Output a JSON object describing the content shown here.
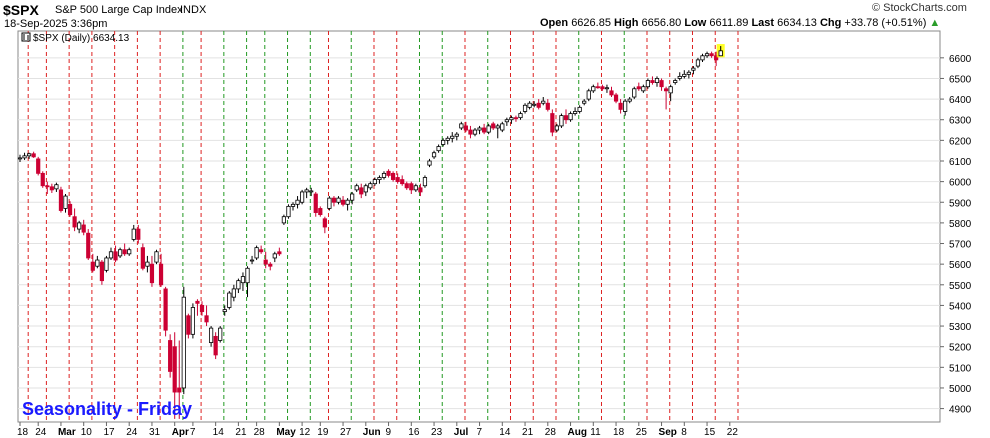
{
  "header": {
    "symbol": "$SPX",
    "name": "S&P 500 Large Cap Index",
    "exchange": "INDX",
    "datetime": "18-Sep-2025 3:36pm",
    "watermark": "© StockCharts.com",
    "ohlc": {
      "open_label": "Open",
      "open": "6626.85",
      "high_label": "High",
      "high": "6656.80",
      "low_label": "Low",
      "low": "6611.89",
      "last_label": "Last",
      "last": "6634.13",
      "chg_label": "Chg",
      "chg": "+33.78 (+0.51%)",
      "chg_icon": "up-triangle-icon"
    }
  },
  "legend": {
    "series_label": "$SPX (Daily) 6634.13",
    "icon": "bar-chart-icon"
  },
  "annotation": {
    "text": "Seasonality - Friday",
    "color": "#1a1aff"
  },
  "colors": {
    "up_candle": "#ffffff",
    "down_candle": "#cc0033",
    "doji": "#000000",
    "red_marker": "#dd2222",
    "green_marker": "#229922",
    "current_highlight": "#ffff00"
  },
  "chart_data": {
    "type": "candlestick",
    "title": "$SPX (Daily)",
    "ylim": [
      4835,
      6730
    ],
    "y_ticks": [
      4900,
      5000,
      5100,
      5200,
      5300,
      5400,
      5500,
      5600,
      5700,
      5800,
      5900,
      6000,
      6100,
      6200,
      6300,
      6400,
      6500,
      6600
    ],
    "x_tick_labels": [
      "18",
      "24",
      "Mar",
      "10",
      "17",
      "24",
      "31",
      "Apr",
      "7",
      "14",
      "21",
      "28",
      "May",
      "12",
      "19",
      "27",
      "Jun",
      "9",
      "16",
      "23",
      "Jul",
      "7",
      "14",
      "21",
      "28",
      "Aug",
      "11",
      "18",
      "25",
      "Sep",
      "8",
      "15",
      "22"
    ],
    "bold_x_labels": [
      "Mar",
      "Apr",
      "May",
      "Jun",
      "Jul",
      "Aug",
      "Sep"
    ],
    "gridlines": true,
    "green_marker_weeks": [
      7,
      9,
      10,
      11,
      12,
      13,
      15,
      18,
      19,
      21,
      25,
      27
    ],
    "candles": [
      {
        "o": 6110,
        "h": 6130,
        "l": 6095,
        "c": 6115
      },
      {
        "o": 6115,
        "h": 6140,
        "l": 6105,
        "c": 6125
      },
      {
        "o": 6125,
        "h": 6140,
        "l": 6110,
        "c": 6135
      },
      {
        "o": 6135,
        "h": 6145,
        "l": 6115,
        "c": 6120
      },
      {
        "o": 6110,
        "h": 6120,
        "l": 6030,
        "c": 6040
      },
      {
        "o": 6040,
        "h": 6050,
        "l": 5970,
        "c": 5980
      },
      {
        "o": 5980,
        "h": 6000,
        "l": 5940,
        "c": 5975
      },
      {
        "o": 5975,
        "h": 5990,
        "l": 5945,
        "c": 5960
      },
      {
        "o": 5965,
        "h": 5995,
        "l": 5950,
        "c": 5985
      },
      {
        "o": 5960,
        "h": 5975,
        "l": 5850,
        "c": 5860
      },
      {
        "o": 5870,
        "h": 5940,
        "l": 5850,
        "c": 5930
      },
      {
        "o": 5890,
        "h": 5905,
        "l": 5830,
        "c": 5840
      },
      {
        "o": 5830,
        "h": 5870,
        "l": 5760,
        "c": 5780
      },
      {
        "o": 5770,
        "h": 5810,
        "l": 5750,
        "c": 5800
      },
      {
        "o": 5790,
        "h": 5815,
        "l": 5740,
        "c": 5755
      },
      {
        "o": 5750,
        "h": 5770,
        "l": 5620,
        "c": 5630
      },
      {
        "o": 5610,
        "h": 5650,
        "l": 5560,
        "c": 5570
      },
      {
        "o": 5590,
        "h": 5640,
        "l": 5580,
        "c": 5620
      },
      {
        "o": 5610,
        "h": 5620,
        "l": 5500,
        "c": 5520
      },
      {
        "o": 5570,
        "h": 5640,
        "l": 5560,
        "c": 5630
      },
      {
        "o": 5630,
        "h": 5680,
        "l": 5620,
        "c": 5660
      },
      {
        "o": 5660,
        "h": 5690,
        "l": 5610,
        "c": 5620
      },
      {
        "o": 5640,
        "h": 5680,
        "l": 5630,
        "c": 5670
      },
      {
        "o": 5670,
        "h": 5700,
        "l": 5640,
        "c": 5650
      },
      {
        "o": 5650,
        "h": 5680,
        "l": 5640,
        "c": 5670
      },
      {
        "o": 5720,
        "h": 5790,
        "l": 5710,
        "c": 5770
      },
      {
        "o": 5770,
        "h": 5790,
        "l": 5700,
        "c": 5720
      },
      {
        "o": 5680,
        "h": 5700,
        "l": 5570,
        "c": 5580
      },
      {
        "o": 5590,
        "h": 5640,
        "l": 5560,
        "c": 5610
      },
      {
        "o": 5600,
        "h": 5640,
        "l": 5490,
        "c": 5510
      },
      {
        "o": 5610,
        "h": 5670,
        "l": 5600,
        "c": 5660
      },
      {
        "o": 5600,
        "h": 5650,
        "l": 5490,
        "c": 5500
      },
      {
        "o": 5480,
        "h": 5490,
        "l": 5250,
        "c": 5280
      },
      {
        "o": 5230,
        "h": 5260,
        "l": 5050,
        "c": 5080
      },
      {
        "o": 5200,
        "h": 5270,
        "l": 4850,
        "c": 4980
      },
      {
        "o": 5000,
        "h": 5230,
        "l": 4850,
        "c": 4980
      },
      {
        "o": 5000,
        "h": 5490,
        "l": 4970,
        "c": 5440
      },
      {
        "o": 5350,
        "h": 5360,
        "l": 5240,
        "c": 5260
      },
      {
        "o": 5260,
        "h": 5410,
        "l": 5240,
        "c": 5390
      },
      {
        "o": 5420,
        "h": 5430,
        "l": 5350,
        "c": 5410
      },
      {
        "o": 5400,
        "h": 5420,
        "l": 5350,
        "c": 5370
      },
      {
        "o": 5350,
        "h": 5400,
        "l": 5300,
        "c": 5320
      },
      {
        "o": 5220,
        "h": 5300,
        "l": 5200,
        "c": 5290
      },
      {
        "o": 5250,
        "h": 5270,
        "l": 5140,
        "c": 5160
      },
      {
        "o": 5230,
        "h": 5300,
        "l": 5220,
        "c": 5290
      },
      {
        "o": 5370,
        "h": 5400,
        "l": 5350,
        "c": 5380
      },
      {
        "o": 5390,
        "h": 5470,
        "l": 5380,
        "c": 5460
      },
      {
        "o": 5440,
        "h": 5500,
        "l": 5420,
        "c": 5480
      },
      {
        "o": 5480,
        "h": 5530,
        "l": 5460,
        "c": 5520
      },
      {
        "o": 5510,
        "h": 5560,
        "l": 5470,
        "c": 5540
      },
      {
        "o": 5510,
        "h": 5590,
        "l": 5440,
        "c": 5580
      },
      {
        "o": 5620,
        "h": 5640,
        "l": 5600,
        "c": 5620
      },
      {
        "o": 5630,
        "h": 5690,
        "l": 5620,
        "c": 5680
      },
      {
        "o": 5670,
        "h": 5690,
        "l": 5650,
        "c": 5660
      },
      {
        "o": 5620,
        "h": 5660,
        "l": 5580,
        "c": 5600
      },
      {
        "o": 5600,
        "h": 5610,
        "l": 5570,
        "c": 5590
      },
      {
        "o": 5630,
        "h": 5660,
        "l": 5610,
        "c": 5650
      },
      {
        "o": 5660,
        "h": 5680,
        "l": 5640,
        "c": 5650
      },
      {
        "o": 5800,
        "h": 5840,
        "l": 5790,
        "c": 5830
      },
      {
        "o": 5830,
        "h": 5890,
        "l": 5820,
        "c": 5880
      },
      {
        "o": 5880,
        "h": 5900,
        "l": 5860,
        "c": 5890
      },
      {
        "o": 5890,
        "h": 5930,
        "l": 5870,
        "c": 5910
      },
      {
        "o": 5900,
        "h": 5960,
        "l": 5890,
        "c": 5950
      },
      {
        "o": 5950,
        "h": 5970,
        "l": 5920,
        "c": 5960
      },
      {
        "o": 5950,
        "h": 5970,
        "l": 5930,
        "c": 5955
      },
      {
        "o": 5940,
        "h": 5950,
        "l": 5830,
        "c": 5850
      },
      {
        "o": 5870,
        "h": 5880,
        "l": 5830,
        "c": 5840
      },
      {
        "o": 5820,
        "h": 5830,
        "l": 5750,
        "c": 5780
      },
      {
        "o": 5870,
        "h": 5930,
        "l": 5860,
        "c": 5920
      },
      {
        "o": 5920,
        "h": 5930,
        "l": 5880,
        "c": 5900
      },
      {
        "o": 5900,
        "h": 5930,
        "l": 5890,
        "c": 5920
      },
      {
        "o": 5910,
        "h": 5930,
        "l": 5880,
        "c": 5890
      },
      {
        "o": 5890,
        "h": 5920,
        "l": 5860,
        "c": 5910
      },
      {
        "o": 5910,
        "h": 5950,
        "l": 5890,
        "c": 5940
      },
      {
        "o": 5960,
        "h": 5990,
        "l": 5950,
        "c": 5980
      },
      {
        "o": 5970,
        "h": 5990,
        "l": 5920,
        "c": 5940
      },
      {
        "o": 5950,
        "h": 5990,
        "l": 5930,
        "c": 5980
      },
      {
        "o": 5970,
        "h": 6000,
        "l": 5960,
        "c": 5990
      },
      {
        "o": 5990,
        "h": 6020,
        "l": 5980,
        "c": 6010
      },
      {
        "o": 6010,
        "h": 6030,
        "l": 5990,
        "c": 6020
      },
      {
        "o": 6020,
        "h": 6050,
        "l": 6010,
        "c": 6040
      },
      {
        "o": 6050,
        "h": 6060,
        "l": 6020,
        "c": 6030
      },
      {
        "o": 6040,
        "h": 6050,
        "l": 6000,
        "c": 6010
      },
      {
        "o": 6020,
        "h": 6040,
        "l": 5990,
        "c": 6000
      },
      {
        "o": 6010,
        "h": 6030,
        "l": 5980,
        "c": 5990
      },
      {
        "o": 5990,
        "h": 6000,
        "l": 5960,
        "c": 5970
      },
      {
        "o": 5990,
        "h": 6000,
        "l": 5940,
        "c": 5960
      },
      {
        "o": 5960,
        "h": 5990,
        "l": 5950,
        "c": 5980
      },
      {
        "o": 5970,
        "h": 5990,
        "l": 5930,
        "c": 5950
      },
      {
        "o": 5980,
        "h": 6030,
        "l": 5970,
        "c": 6020
      },
      {
        "o": 6080,
        "h": 6110,
        "l": 6070,
        "c": 6100
      },
      {
        "o": 6120,
        "h": 6150,
        "l": 6110,
        "c": 6140
      },
      {
        "o": 6150,
        "h": 6180,
        "l": 6140,
        "c": 6170
      },
      {
        "o": 6180,
        "h": 6210,
        "l": 6170,
        "c": 6200
      },
      {
        "o": 6200,
        "h": 6220,
        "l": 6180,
        "c": 6210
      },
      {
        "o": 6210,
        "h": 6240,
        "l": 6190,
        "c": 6220
      },
      {
        "o": 6220,
        "h": 6240,
        "l": 6200,
        "c": 6230
      },
      {
        "o": 6260,
        "h": 6290,
        "l": 6250,
        "c": 6280
      },
      {
        "o": 6270,
        "h": 6290,
        "l": 6240,
        "c": 6250
      },
      {
        "o": 6250,
        "h": 6270,
        "l": 6210,
        "c": 6230
      },
      {
        "o": 6230,
        "h": 6260,
        "l": 6220,
        "c": 6250
      },
      {
        "o": 6250,
        "h": 6270,
        "l": 6230,
        "c": 6260
      },
      {
        "o": 6260,
        "h": 6280,
        "l": 6230,
        "c": 6240
      },
      {
        "o": 6240,
        "h": 6280,
        "l": 6230,
        "c": 6270
      },
      {
        "o": 6280,
        "h": 6290,
        "l": 6250,
        "c": 6260
      },
      {
        "o": 6260,
        "h": 6280,
        "l": 6210,
        "c": 6270
      },
      {
        "o": 6250,
        "h": 6290,
        "l": 6240,
        "c": 6280
      },
      {
        "o": 6290,
        "h": 6310,
        "l": 6270,
        "c": 6300
      },
      {
        "o": 6300,
        "h": 6320,
        "l": 6280,
        "c": 6310
      },
      {
        "o": 6310,
        "h": 6320,
        "l": 6290,
        "c": 6305
      },
      {
        "o": 6310,
        "h": 6340,
        "l": 6300,
        "c": 6330
      },
      {
        "o": 6340,
        "h": 6380,
        "l": 6330,
        "c": 6370
      },
      {
        "o": 6360,
        "h": 6390,
        "l": 6350,
        "c": 6380
      },
      {
        "o": 6370,
        "h": 6390,
        "l": 6360,
        "c": 6375
      },
      {
        "o": 6380,
        "h": 6400,
        "l": 6350,
        "c": 6360
      },
      {
        "o": 6380,
        "h": 6410,
        "l": 6370,
        "c": 6390
      },
      {
        "o": 6380,
        "h": 6400,
        "l": 6340,
        "c": 6350
      },
      {
        "o": 6330,
        "h": 6350,
        "l": 6220,
        "c": 6240
      },
      {
        "o": 6250,
        "h": 6280,
        "l": 6240,
        "c": 6270
      },
      {
        "o": 6270,
        "h": 6330,
        "l": 6260,
        "c": 6320
      },
      {
        "o": 6320,
        "h": 6350,
        "l": 6280,
        "c": 6300
      },
      {
        "o": 6300,
        "h": 6340,
        "l": 6290,
        "c": 6330
      },
      {
        "o": 6330,
        "h": 6360,
        "l": 6320,
        "c": 6340
      },
      {
        "o": 6340,
        "h": 6370,
        "l": 6330,
        "c": 6360
      },
      {
        "o": 6380,
        "h": 6400,
        "l": 6370,
        "c": 6390
      },
      {
        "o": 6400,
        "h": 6450,
        "l": 6390,
        "c": 6440
      },
      {
        "o": 6440,
        "h": 6470,
        "l": 6430,
        "c": 6460
      },
      {
        "o": 6460,
        "h": 6480,
        "l": 6450,
        "c": 6455
      },
      {
        "o": 6460,
        "h": 6470,
        "l": 6440,
        "c": 6450
      },
      {
        "o": 6450,
        "h": 6470,
        "l": 6430,
        "c": 6455
      },
      {
        "o": 6440,
        "h": 6460,
        "l": 6410,
        "c": 6420
      },
      {
        "o": 6420,
        "h": 6430,
        "l": 6380,
        "c": 6390
      },
      {
        "o": 6380,
        "h": 6400,
        "l": 6330,
        "c": 6350
      },
      {
        "o": 6340,
        "h": 6400,
        "l": 6320,
        "c": 6390
      },
      {
        "o": 6390,
        "h": 6410,
        "l": 6380,
        "c": 6400
      },
      {
        "o": 6410,
        "h": 6460,
        "l": 6400,
        "c": 6450
      },
      {
        "o": 6460,
        "h": 6480,
        "l": 6440,
        "c": 6450
      },
      {
        "o": 6440,
        "h": 6470,
        "l": 6430,
        "c": 6460
      },
      {
        "o": 6460,
        "h": 6500,
        "l": 6450,
        "c": 6490
      },
      {
        "o": 6490,
        "h": 6510,
        "l": 6470,
        "c": 6480
      },
      {
        "o": 6480,
        "h": 6510,
        "l": 6460,
        "c": 6500
      },
      {
        "o": 6490,
        "h": 6500,
        "l": 6440,
        "c": 6460
      },
      {
        "o": 6450,
        "h": 6460,
        "l": 6350,
        "c": 6440
      },
      {
        "o": 6430,
        "h": 6470,
        "l": 6390,
        "c": 6460
      },
      {
        "o": 6480,
        "h": 6500,
        "l": 6470,
        "c": 6490
      },
      {
        "o": 6500,
        "h": 6530,
        "l": 6490,
        "c": 6510
      },
      {
        "o": 6510,
        "h": 6540,
        "l": 6500,
        "c": 6520
      },
      {
        "o": 6520,
        "h": 6540,
        "l": 6500,
        "c": 6530
      },
      {
        "o": 6540,
        "h": 6560,
        "l": 6520,
        "c": 6550
      },
      {
        "o": 6560,
        "h": 6600,
        "l": 6550,
        "c": 6590
      },
      {
        "o": 6590,
        "h": 6620,
        "l": 6580,
        "c": 6610
      },
      {
        "o": 6610,
        "h": 6630,
        "l": 6600,
        "c": 6620
      },
      {
        "o": 6620,
        "h": 6630,
        "l": 6600,
        "c": 6610
      },
      {
        "o": 6610,
        "h": 6630,
        "l": 6560,
        "c": 6590
      },
      {
        "o": 6610,
        "h": 6657,
        "l": 6612,
        "c": 6634
      }
    ]
  }
}
